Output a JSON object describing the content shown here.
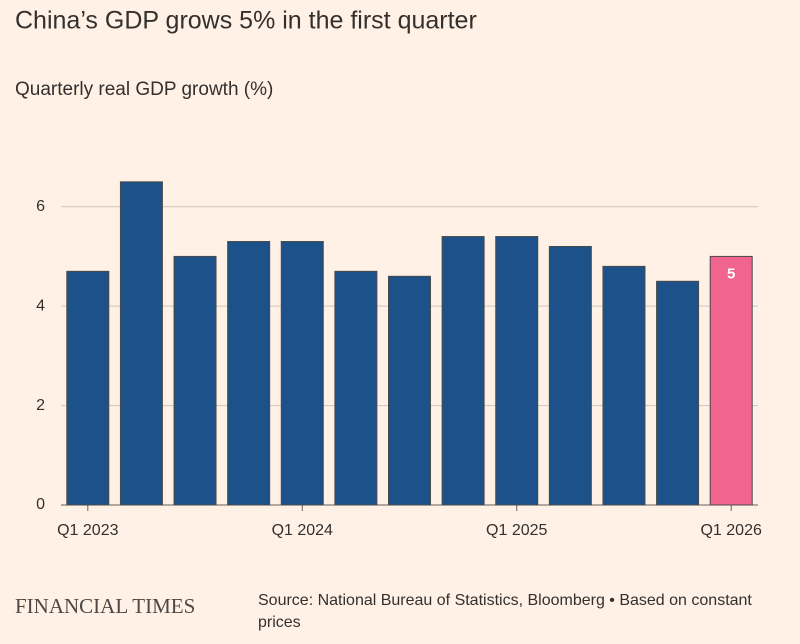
{
  "chart_data": {
    "type": "bar",
    "title": "China’s GDP grows 5% in the first quarter",
    "subtitle": "Quarterly real GDP growth (%)",
    "categories": [
      "Q1 2023",
      null,
      null,
      null,
      "Q1 2024",
      null,
      null,
      null,
      "Q1 2025",
      null,
      null,
      null,
      "Q1 2026"
    ],
    "series": [
      {
        "color": "#1d5189",
        "values": [
          4.7,
          6.5,
          5.0,
          5.3,
          5.3,
          4.7,
          4.6,
          5.4,
          5.4,
          5.2,
          4.8,
          4.5,
          null
        ]
      },
      {
        "color": "#f0648f",
        "values": [
          null,
          null,
          null,
          null,
          null,
          null,
          null,
          null,
          null,
          null,
          null,
          null,
          5
        ],
        "show_labels": true
      }
    ],
    "ylim": [
      0,
      7
    ],
    "yticks": [
      0,
      2,
      4,
      6
    ],
    "grid": true,
    "brand": "FINANCIAL TIMES",
    "source": "Source: National Bureau of Statistics, Bloomberg • Based on constant prices"
  }
}
